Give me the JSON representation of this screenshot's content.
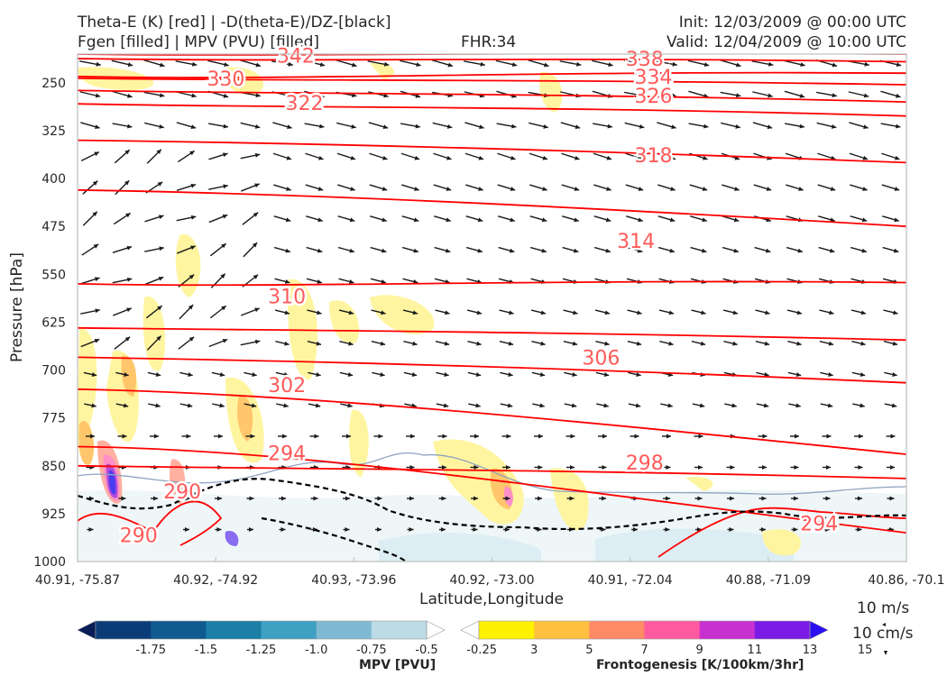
{
  "header": {
    "title_left_1": "Theta-E (K) [red] | -D(theta-E)/DZ-[black]",
    "title_left_2": "Fgen [filled] | MPV (PVU) [filled]",
    "title_center": "FHR:34",
    "title_right_1": "Init: 12/03/2009 @ 00:00 UTC",
    "title_right_2": "Valid: 12/04/2009 @ 10:00 UTC"
  },
  "axes": {
    "ylabel": "Pressure [hPa]",
    "xlabel": "Latitude,Longitude"
  },
  "legend": {
    "vector_label_1": "10 m/s",
    "vector_label_2": "10 cm/s"
  },
  "colors": {
    "theta_e_contour": "#ff0000",
    "theta_e_label": "#ff5a5a",
    "stability_contour": "#000000",
    "wind_arrow": "#1a1a1a",
    "frame": "#bfbfbf"
  },
  "chart_data": {
    "type": "cross-section",
    "y_axis": {
      "scale": "linear-reversed",
      "range": [
        1000,
        200
      ],
      "ticks": [
        250,
        325,
        400,
        475,
        550,
        625,
        700,
        775,
        850,
        925,
        1000
      ]
    },
    "x_axis": {
      "ticks": [
        "40.91, -75.87",
        "40.92, -74.92",
        "40.93, -73.96",
        "40.92, -73.00",
        "40.91, -72.04",
        "40.88, -71.09",
        "40.86, -70.1"
      ]
    },
    "theta_e_labels": [
      {
        "label": "342",
        "x": 2.5,
        "p": 207
      },
      {
        "label": "338",
        "x": 6.5,
        "p": 212
      },
      {
        "label": "334",
        "x": 6.6,
        "p": 240
      },
      {
        "label": "330",
        "x": 1.7,
        "p": 243
      },
      {
        "label": "326",
        "x": 6.6,
        "p": 270
      },
      {
        "label": "322",
        "x": 2.6,
        "p": 281
      },
      {
        "label": "318",
        "x": 6.6,
        "p": 363
      },
      {
        "label": "314",
        "x": 6.4,
        "p": 497
      },
      {
        "label": "310",
        "x": 2.4,
        "p": 584
      },
      {
        "label": "306",
        "x": 6.0,
        "p": 680
      },
      {
        "label": "302",
        "x": 2.4,
        "p": 723
      },
      {
        "label": "298",
        "x": 6.5,
        "p": 845
      },
      {
        "label": "294",
        "x": 2.4,
        "p": 830
      },
      {
        "label": "294",
        "x": 8.5,
        "p": 940
      },
      {
        "label": "290",
        "x": 1.2,
        "p": 890
      },
      {
        "label": "290",
        "x": 0.7,
        "p": 958
      }
    ],
    "theta_e_contours": [
      {
        "value": 342,
        "p_left": 205,
        "p_right": 205
      },
      {
        "value": 338,
        "p_left": 212,
        "p_right": 217
      },
      {
        "value": 334,
        "p_left": 240,
        "p_right": 235
      },
      {
        "value": 330,
        "p_left": 243,
        "p_right": 253
      },
      {
        "value": 326,
        "p_left": 262,
        "p_right": 280
      },
      {
        "value": 322,
        "p_left": 283,
        "p_right": 302
      },
      {
        "value": 318,
        "p_left": 340,
        "p_right": 375
      },
      {
        "value": 314,
        "p_left": 418,
        "p_right": 475
      },
      {
        "value": 310,
        "p_left": 565,
        "p_right": 563
      },
      {
        "value": 306,
        "p_left": 634,
        "p_right": 653
      },
      {
        "value": 302,
        "p_left": 680,
        "p_right": 720
      },
      {
        "value": 298,
        "p_left": 730,
        "p_right": 832
      },
      {
        "value": 294,
        "p_left": 820,
        "p_right": 955
      },
      {
        "value": 290,
        "p_left": 850,
        "p_right": 870
      }
    ],
    "mpv_colorbar": {
      "title": "MPV [PVU]",
      "ticks": [
        "-1.75",
        "-1.5",
        "-1.25",
        "-1.0",
        "-0.75",
        "-0.5",
        "-0.25"
      ],
      "colors": [
        "#081d58",
        "#0c3c78",
        "#0f5a8f",
        "#1b7fa6",
        "#3ea0c2",
        "#7fbad2",
        "#bcdbe6",
        "#ffffff"
      ]
    },
    "fgen_colorbar": {
      "title": "Frontogenesis [K/100km/3hr]",
      "ticks": [
        "3",
        "5",
        "7",
        "9",
        "11",
        "13",
        "15"
      ],
      "colors": [
        "#ffffff",
        "#fff200",
        "#ffc040",
        "#ff8a66",
        "#ff5aa0",
        "#c830d0",
        "#7a1be6",
        "#2a10f0"
      ]
    }
  }
}
